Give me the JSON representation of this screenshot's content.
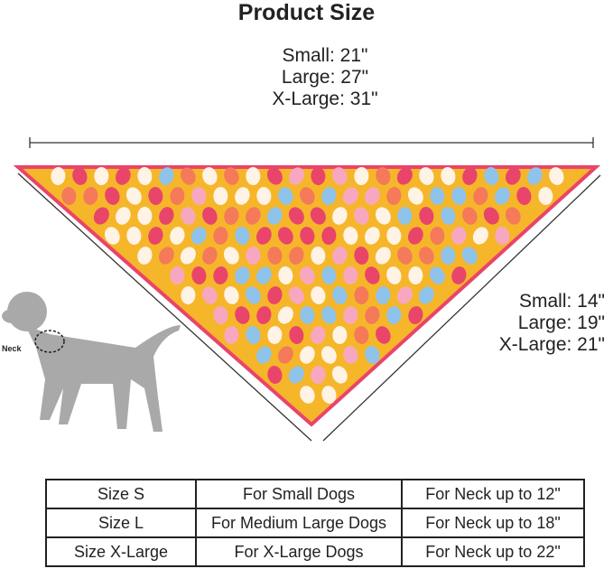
{
  "title": "Product Size",
  "length_sizes": [
    "Small: 21\"",
    "Large: 27\"",
    "X-Large: 31\""
  ],
  "side_sizes": [
    "Small: 14\"",
    "Large: 19\"",
    "X-Large: 21\""
  ],
  "neck_label": "Neck",
  "colors": {
    "bandana": "#f6b62a",
    "border": "#e9446a",
    "dog": "#a9a9a9"
  },
  "table": [
    [
      "Size S",
      "For Small Dogs",
      "For Neck up to 12\""
    ],
    [
      "Size L",
      "For Medium Large Dogs",
      "For Neck up to 18\""
    ],
    [
      "Size X-Large",
      "For X-Large Dogs",
      "For Neck up to 22\""
    ]
  ]
}
